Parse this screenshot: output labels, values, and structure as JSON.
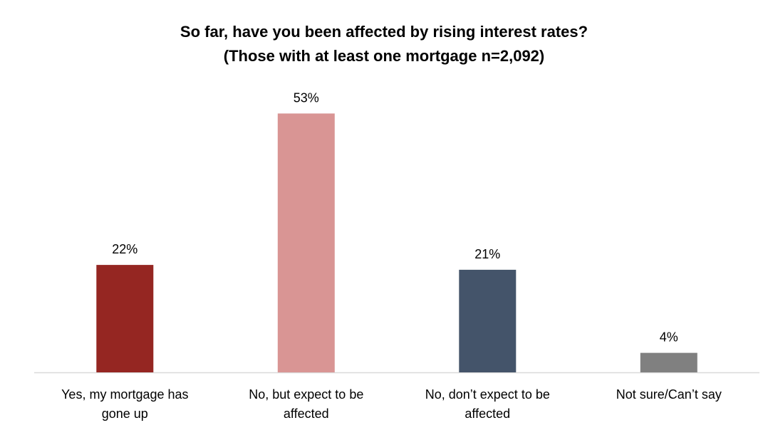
{
  "chart_data": {
    "type": "bar",
    "title": "So far, have you been affected by rising interest rates?",
    "subtitle": "(Those with at least one mortgage n=2,092)",
    "categories": [
      [
        "Yes, my mortgage has",
        "gone up"
      ],
      [
        "No, but expect to be",
        "affected"
      ],
      [
        "No, don’t expect to be",
        "affected"
      ],
      [
        "Not sure/Can’t say"
      ]
    ],
    "values": [
      22,
      53,
      21,
      4
    ],
    "value_labels": [
      "22%",
      "53%",
      "21%",
      "4%"
    ],
    "colors": [
      "#952622",
      "#D99594",
      "#44546A",
      "#808080"
    ],
    "ylim": [
      0,
      60
    ],
    "xlabel": "",
    "ylabel": "",
    "grid": false,
    "legend": "none"
  }
}
